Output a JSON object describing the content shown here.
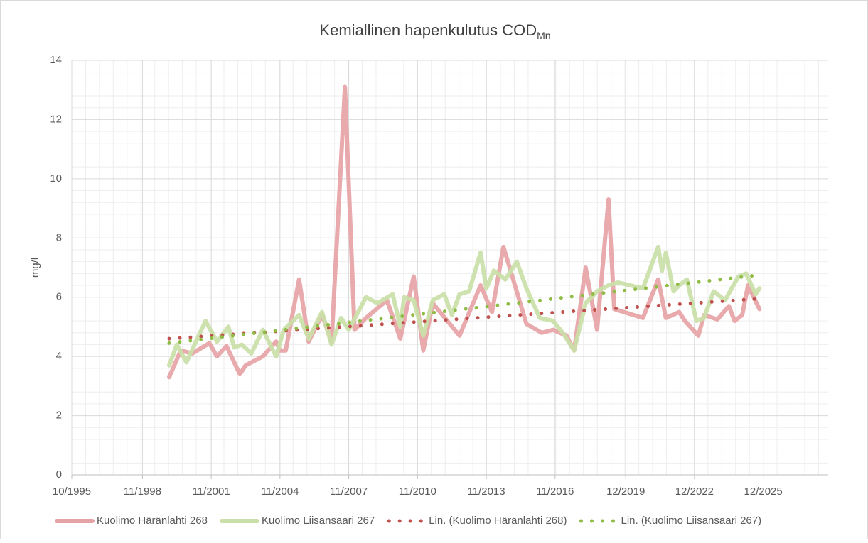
{
  "chart_data": {
    "type": "line",
    "title": "Kemiallinen hapenkulutus COD",
    "title_subscript": "Mn",
    "y_label": "mg/l",
    "xlim": [
      "1995-10",
      "2028-10"
    ],
    "xticks": [
      {
        "value": "1995-10",
        "label": "10/1995"
      },
      {
        "value": "1998-11",
        "label": "11/1998"
      },
      {
        "value": "2001-11",
        "label": "11/2001"
      },
      {
        "value": "2004-11",
        "label": "11/2004"
      },
      {
        "value": "2007-11",
        "label": "11/2007"
      },
      {
        "value": "2010-11",
        "label": "11/2010"
      },
      {
        "value": "2013-11",
        "label": "11/2013"
      },
      {
        "value": "2016-11",
        "label": "11/2016"
      },
      {
        "value": "2019-12",
        "label": "12/2019"
      },
      {
        "value": "2022-12",
        "label": "12/2022"
      },
      {
        "value": "2025-12",
        "label": "12/2025"
      }
    ],
    "ylim": [
      0,
      14
    ],
    "yticks": [
      0,
      2,
      4,
      6,
      8,
      10,
      12,
      14
    ],
    "grid": true,
    "minor_grid": true,
    "legend": "bottom",
    "series": [
      {
        "name": "Kuolimo Häränlahti 268",
        "color": "#e6a3a5",
        "style": "solid",
        "x": [
          "2000-01",
          "2000-07",
          "2001-01",
          "2001-10",
          "2002-02",
          "2002-07",
          "2003-02",
          "2003-05",
          "2004-02",
          "2004-09",
          "2004-11",
          "2005-02",
          "2005-09",
          "2006-02",
          "2006-09",
          "2007-02",
          "2007-09",
          "2008-02",
          "2008-08",
          "2009-07",
          "2010-02",
          "2010-09",
          "2011-02",
          "2011-07",
          "2012-09",
          "2013-08",
          "2014-02",
          "2014-08",
          "2015-08",
          "2016-04",
          "2016-10",
          "2017-05",
          "2017-09",
          "2018-03",
          "2018-09",
          "2019-03",
          "2019-06",
          "2020-09",
          "2021-05",
          "2021-09",
          "2022-04",
          "2022-07",
          "2023-02",
          "2023-05",
          "2023-12",
          "2024-06",
          "2024-09",
          "2025-01",
          "2025-04",
          "2025-10"
        ],
        "values": [
          3.3,
          4.2,
          4.1,
          4.45,
          4.0,
          4.35,
          3.4,
          3.7,
          4.0,
          4.5,
          4.2,
          4.2,
          6.6,
          4.5,
          5.4,
          4.5,
          13.1,
          4.9,
          5.3,
          5.9,
          4.6,
          6.7,
          4.2,
          5.8,
          4.7,
          6.4,
          5.5,
          7.7,
          5.1,
          4.8,
          4.9,
          4.7,
          4.2,
          7.0,
          4.9,
          9.3,
          5.6,
          5.3,
          6.6,
          5.3,
          5.5,
          5.2,
          4.7,
          5.4,
          5.25,
          5.7,
          5.2,
          5.4,
          6.4,
          5.6
        ]
      },
      {
        "name": "Kuolimo Liisansaari 267",
        "color": "#cadfa8",
        "style": "solid",
        "x": [
          "2000-01",
          "2000-05",
          "2000-10",
          "2001-08",
          "2002-02",
          "2002-08",
          "2002-11",
          "2003-03",
          "2003-08",
          "2004-02",
          "2004-09",
          "2005-01",
          "2005-09",
          "2006-02",
          "2006-09",
          "2007-02",
          "2007-07",
          "2007-11",
          "2008-08",
          "2009-02",
          "2009-10",
          "2010-02",
          "2010-04",
          "2010-09",
          "2011-02",
          "2011-07",
          "2012-01",
          "2012-05",
          "2012-09",
          "2013-02",
          "2013-08",
          "2013-11",
          "2014-03",
          "2014-09",
          "2015-03",
          "2015-08",
          "2016-03",
          "2016-10",
          "2017-03",
          "2017-09",
          "2018-03",
          "2018-09",
          "2019-03",
          "2019-08",
          "2020-09",
          "2021-05",
          "2021-07",
          "2021-09",
          "2022-01",
          "2022-04",
          "2022-08",
          "2023-01",
          "2023-05",
          "2023-10",
          "2024-04",
          "2024-11",
          "2025-03",
          "2025-08",
          "2025-10"
        ],
        "values": [
          3.7,
          4.4,
          3.8,
          5.2,
          4.5,
          5.0,
          4.3,
          4.4,
          4.1,
          4.9,
          4.0,
          4.9,
          5.4,
          4.6,
          5.5,
          4.4,
          5.3,
          4.9,
          6.0,
          5.8,
          6.1,
          5.0,
          6.0,
          5.9,
          4.7,
          5.9,
          6.1,
          5.4,
          6.1,
          6.2,
          7.5,
          6.3,
          6.9,
          6.6,
          7.2,
          6.3,
          5.3,
          5.2,
          4.8,
          4.2,
          5.8,
          6.2,
          6.4,
          6.5,
          6.3,
          7.7,
          6.9,
          7.5,
          6.2,
          6.4,
          6.6,
          5.2,
          5.3,
          6.2,
          5.9,
          6.7,
          6.8,
          6.1,
          6.3
        ]
      },
      {
        "name": "Lin. (Kuolimo Häränlahti 268)",
        "color": "#c0504d",
        "style": "dotted",
        "x": [
          "2000-01",
          "2025-10"
        ],
        "values": [
          4.6,
          5.95
        ]
      },
      {
        "name": "Lin. (Kuolimo Liisansaari 267)",
        "color": "#8fbc45",
        "style": "dotted",
        "x": [
          "2000-01",
          "2025-10"
        ],
        "values": [
          4.45,
          6.75
        ]
      }
    ]
  }
}
